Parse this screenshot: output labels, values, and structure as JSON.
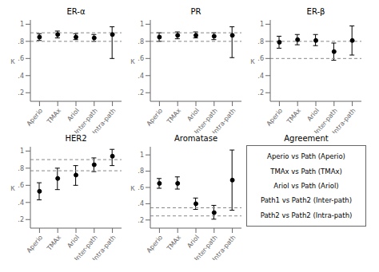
{
  "chart_data": [
    {
      "type": "scatter",
      "title": "ER-α",
      "y_label": "κ",
      "categories": [
        "Aperio",
        "TMAx",
        "Ariol",
        "Inter-path",
        "Intra-path"
      ],
      "values": [
        0.85,
        0.88,
        0.85,
        0.84,
        0.88
      ],
      "ci_low": [
        0.81,
        0.84,
        0.82,
        0.8,
        0.6
      ],
      "ci_high": [
        0.89,
        0.92,
        0.89,
        0.88,
        0.97
      ],
      "color": "black",
      "marker": "circle",
      "reference_lines": [
        {
          "value": 0.9,
          "color": "#888888",
          "line_style": "dashed"
        },
        {
          "value": 0.8,
          "color": "#888888",
          "line_style": "dashed"
        }
      ],
      "ylim": [
        0.1,
        1.05
      ],
      "yticks": [
        {
          "value": 0.2,
          "label": ".2"
        },
        {
          "value": 0.4,
          "label": ".4"
        },
        {
          "value": 0.6,
          "label": ".6"
        },
        {
          "value": 0.8,
          "label": ".8"
        },
        1
      ]
    },
    {
      "type": "scatter",
      "title": "PR",
      "y_label": "κ",
      "categories": [
        "Aperio",
        "TMAx",
        "Ariol",
        "Inter-path",
        "Intra-path"
      ],
      "values": [
        0.85,
        0.87,
        0.87,
        0.86,
        0.87
      ],
      "ci_low": [
        0.8,
        0.83,
        0.84,
        0.82,
        0.61
      ],
      "ci_high": [
        0.9,
        0.91,
        0.91,
        0.9,
        0.97
      ],
      "color": "black",
      "marker": "circle",
      "reference_lines": [
        {
          "value": 0.9,
          "color": "#888888",
          "line_style": "dashed"
        },
        {
          "value": 0.8,
          "color": "#888888",
          "line_style": "dashed"
        }
      ],
      "ylim": [
        0.1,
        1.05
      ],
      "yticks": [
        {
          "value": 0.2,
          "label": ".2"
        },
        {
          "value": 0.4,
          "label": ".4"
        },
        {
          "value": 0.6,
          "label": ".6"
        },
        {
          "value": 0.8,
          "label": ".8"
        },
        1
      ]
    },
    {
      "type": "scatter",
      "title": "ER-β",
      "y_label": "κ",
      "categories": [
        "Aperio",
        "TMAx",
        "Ariol",
        "Inter-path",
        "Intra-path"
      ],
      "values": [
        0.79,
        0.82,
        0.81,
        0.68,
        0.81
      ],
      "ci_low": [
        0.72,
        0.76,
        0.75,
        0.58,
        0.64
      ],
      "ci_high": [
        0.86,
        0.88,
        0.88,
        0.78,
        0.98
      ],
      "color": "black",
      "marker": "circle",
      "reference_lines": [
        {
          "value": 0.8,
          "color": "#888888",
          "line_style": "dashed"
        },
        {
          "value": 0.6,
          "color": "#888888",
          "line_style": "dashed"
        }
      ],
      "ylim": [
        0.1,
        1.05
      ],
      "yticks": [
        {
          "value": 0.2,
          "label": ".2"
        },
        {
          "value": 0.4,
          "label": ".4"
        },
        {
          "value": 0.6,
          "label": ".6"
        },
        {
          "value": 0.8,
          "label": ".8"
        },
        1
      ]
    },
    {
      "type": "scatter",
      "title": "HER2",
      "y_label": "κ",
      "categories": [
        "Aperio",
        "TMAx",
        "Ariol",
        "Inter-path",
        "Intra-path"
      ],
      "values": [
        0.53,
        0.68,
        0.72,
        0.84,
        0.94
      ],
      "ci_low": [
        0.43,
        0.55,
        0.6,
        0.76,
        0.83
      ],
      "ci_high": [
        0.63,
        0.8,
        0.83,
        0.92,
        1.02
      ],
      "color": "black",
      "marker": "circle",
      "reference_lines": [
        {
          "value": 0.9,
          "color": "#888888",
          "line_style": "dashed"
        },
        {
          "value": 0.77,
          "color": "#888888",
          "line_style": "dashed"
        }
      ],
      "ylim": [
        0.1,
        1.05
      ],
      "yticks": [
        {
          "value": 0.2,
          "label": ".2"
        },
        {
          "value": 0.4,
          "label": ".4"
        },
        {
          "value": 0.6,
          "label": ".6"
        },
        {
          "value": 0.8,
          "label": ".8"
        },
        1
      ]
    },
    {
      "type": "scatter",
      "title": "Aromatase",
      "y_label": "κ",
      "categories": [
        "Aperio",
        "TMAx",
        "Ariol",
        "Inter-path",
        "Intra-path"
      ],
      "values": [
        0.65,
        0.65,
        0.4,
        0.29,
        0.69
      ],
      "ci_low": [
        0.59,
        0.58,
        0.33,
        0.21,
        0.32
      ],
      "ci_high": [
        0.71,
        0.73,
        0.47,
        0.38,
        1.06
      ],
      "color": "black",
      "marker": "circle",
      "reference_lines": [
        {
          "value": 0.35,
          "color": "#888888",
          "line_style": "dashed"
        },
        {
          "value": 0.25,
          "color": "#888888",
          "line_style": "dashed"
        }
      ],
      "ylim": [
        0.1,
        1.1
      ],
      "yticks": [
        {
          "value": 0.2,
          "label": ".2"
        },
        {
          "value": 0.4,
          "label": ".4"
        },
        {
          "value": 0.6,
          "label": ".6"
        },
        {
          "value": 0.8,
          "label": ".8"
        },
        1
      ]
    },
    {
      "type": "text",
      "title": "Agreement",
      "annotations": [
        "Aperio vs Path (Aperio)",
        "TMAx vs Path (TMAx)",
        "Ariol vs Path (Ariol)",
        "Path1 vs Path2 (Inter-path)",
        "Path2 vs Path2 (Intra-path)"
      ]
    }
  ]
}
